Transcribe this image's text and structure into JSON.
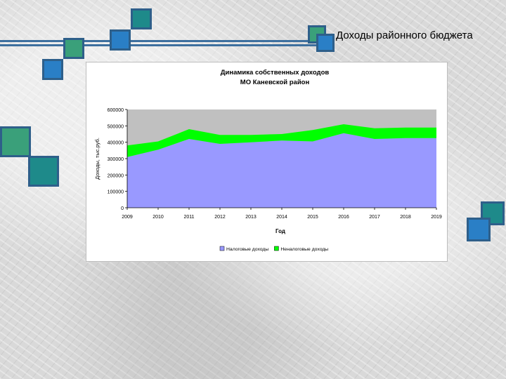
{
  "slide": {
    "title": "Доходы районного бюджета"
  },
  "colors": {
    "tax": "#9999ff",
    "nontax": "#00ff00",
    "plot_bg": "#c0c0c0",
    "decor_line": "#3d6f9e"
  },
  "chart_data": {
    "type": "area",
    "title_line1": "Динамика собственных доходов",
    "title_line2": "МО Каневской район",
    "xlabel": "Год",
    "ylabel": "Доходы, тыс.руб.",
    "categories": [
      "2009",
      "2010",
      "2011",
      "2012",
      "2013",
      "2014",
      "2015",
      "2016",
      "2017",
      "2018",
      "2019"
    ],
    "yticks": [
      "0",
      "100000",
      "200000",
      "300000",
      "400000",
      "500000",
      "600000"
    ],
    "ylim": [
      0,
      600000
    ],
    "stacked": true,
    "series": [
      {
        "name": "Налоговые доходы",
        "color": "#9999ff",
        "values": [
          310000,
          355000,
          420000,
          390000,
          400000,
          410000,
          405000,
          455000,
          420000,
          425000,
          425000
        ]
      },
      {
        "name": "Неналоговые доходы",
        "color": "#00ff00",
        "values": [
          70000,
          50000,
          60000,
          55000,
          45000,
          40000,
          70000,
          55000,
          65000,
          65000,
          65000
        ]
      }
    ],
    "legend_position": "bottom",
    "grid": false
  }
}
